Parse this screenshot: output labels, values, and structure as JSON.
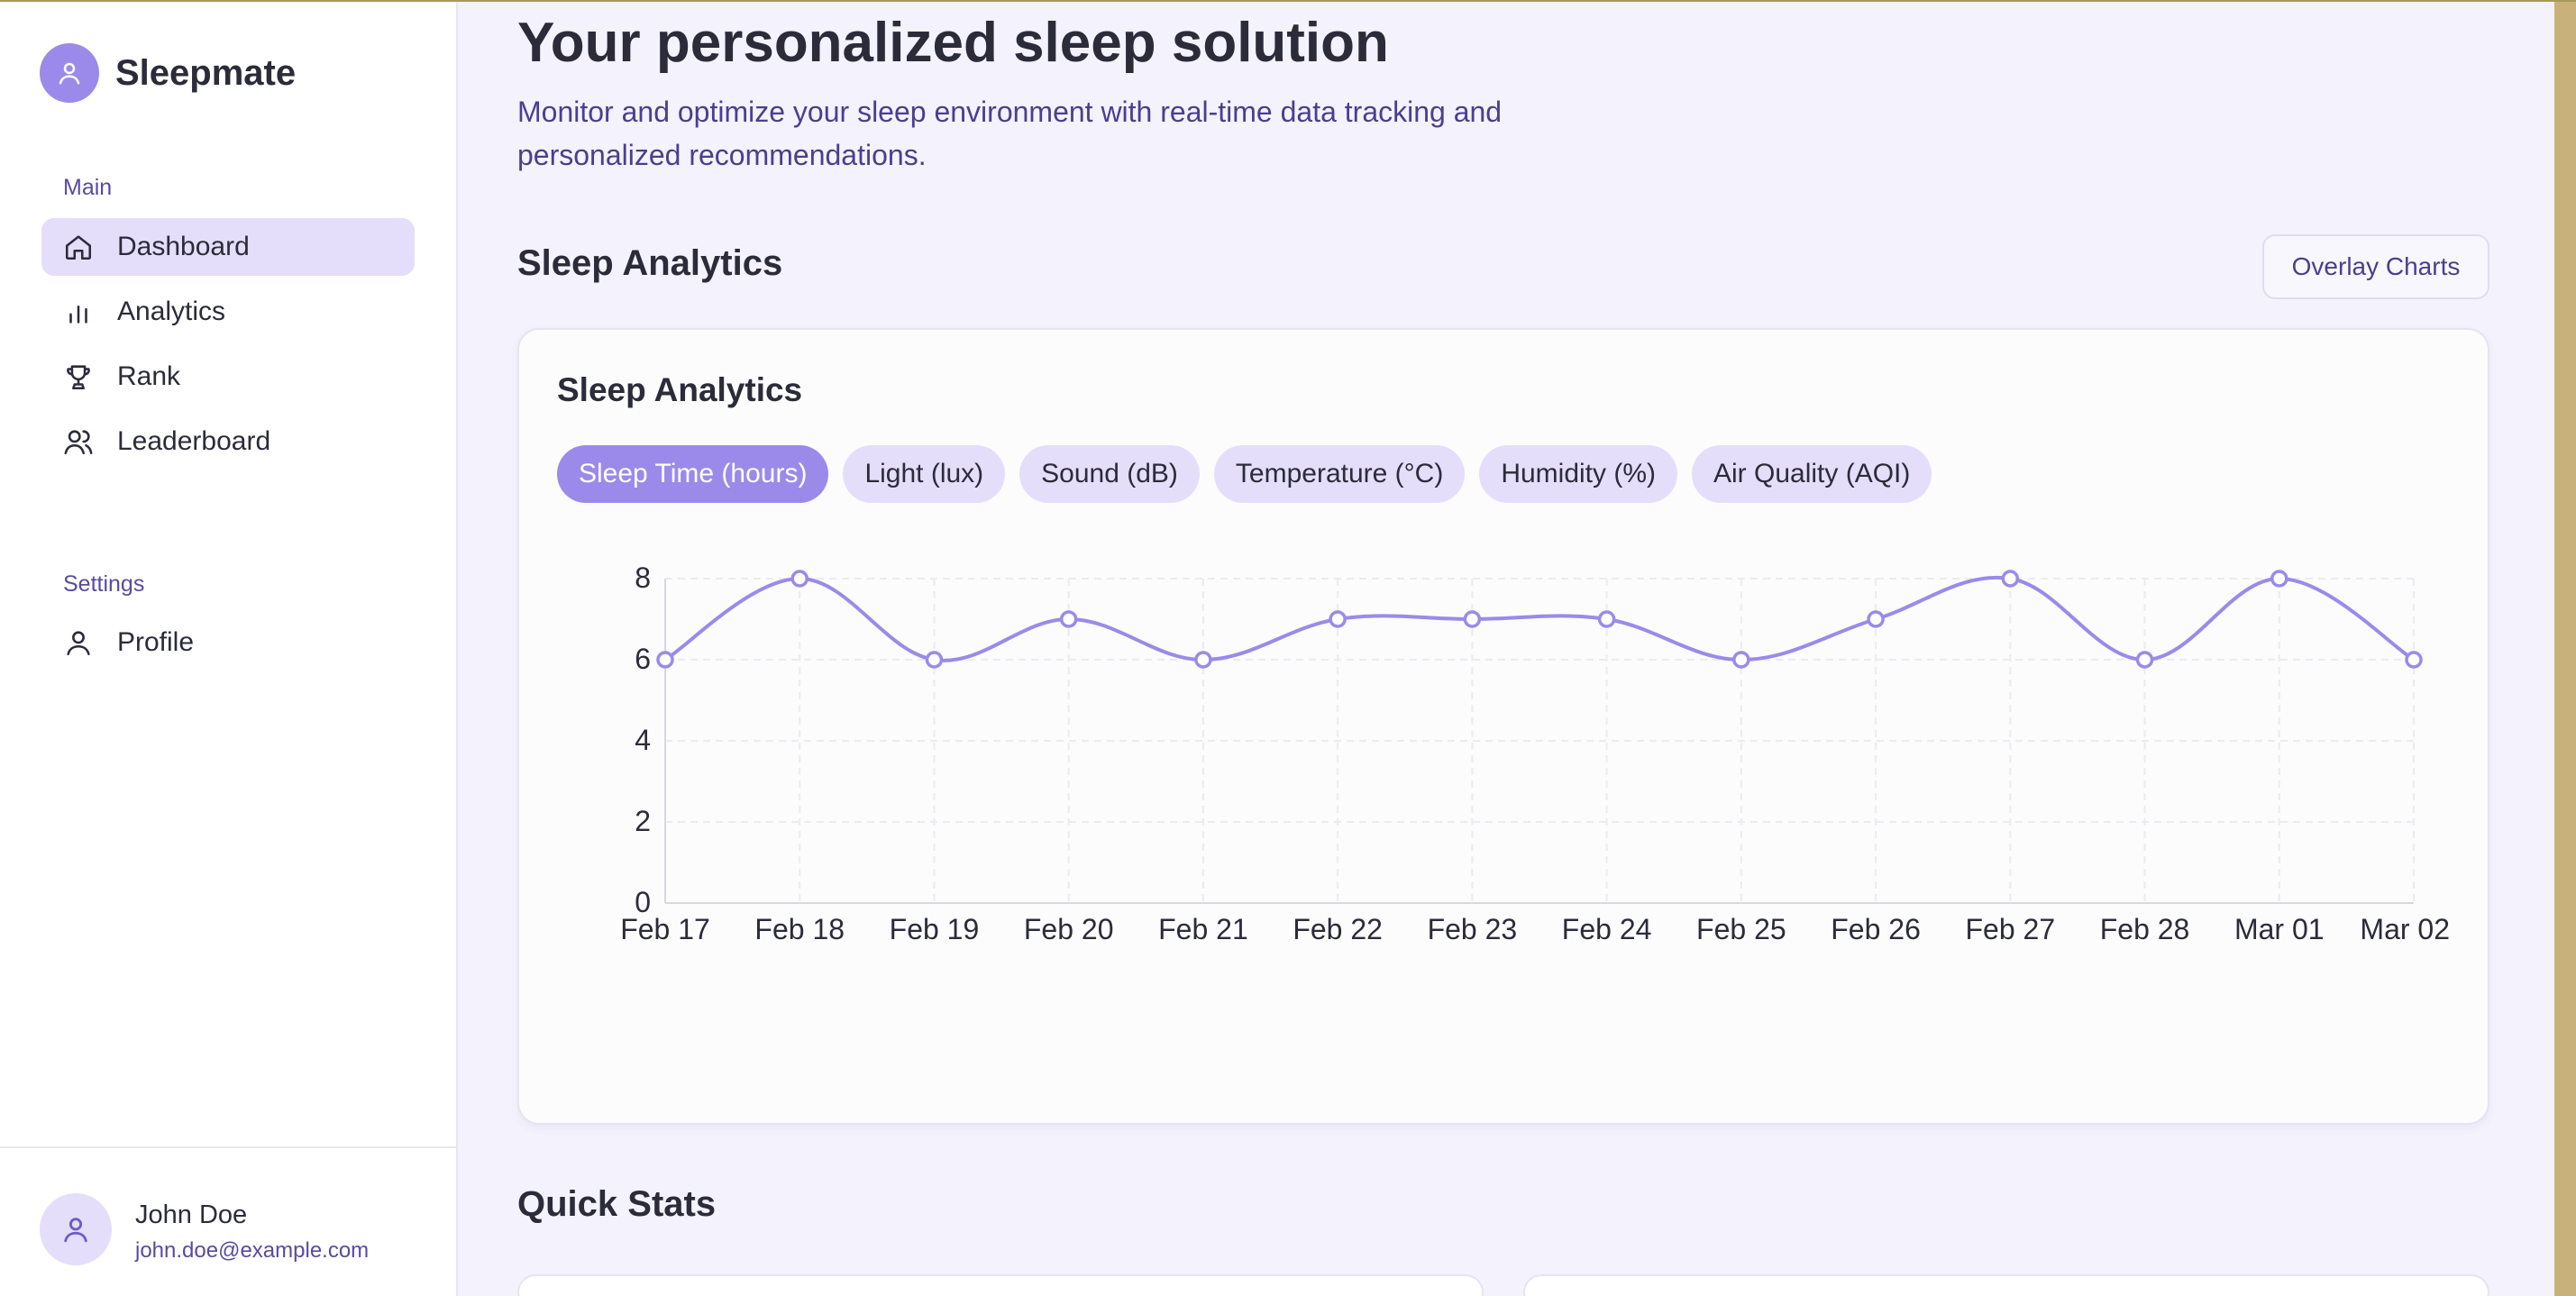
{
  "app": {
    "name": "Sleepmate"
  },
  "sidebar": {
    "main_label": "Main",
    "settings_label": "Settings",
    "items": [
      {
        "label": "Dashboard",
        "icon": "home-icon",
        "active": true
      },
      {
        "label": "Analytics",
        "icon": "bar-chart-icon",
        "active": false
      },
      {
        "label": "Rank",
        "icon": "trophy-icon",
        "active": false
      },
      {
        "label": "Leaderboard",
        "icon": "users-icon",
        "active": false
      }
    ],
    "settings_items": [
      {
        "label": "Profile",
        "icon": "user-icon"
      }
    ]
  },
  "user": {
    "name": "John Doe",
    "email": "john.doe@example.com"
  },
  "header": {
    "title": "Your personalized sleep solution",
    "subtitle": "Monitor and optimize your sleep environment with real-time data tracking and personalized recommendations."
  },
  "analytics": {
    "section_title": "Sleep Analytics",
    "overlay_button": "Overlay Charts",
    "card_title": "Sleep Analytics",
    "tabs": [
      "Sleep Time (hours)",
      "Light (lux)",
      "Sound (dB)",
      "Temperature (°C)",
      "Humidity (%)",
      "Air Quality (AQI)"
    ],
    "active_tab": 0
  },
  "quick_stats": {
    "title": "Quick Stats"
  },
  "colors": {
    "accent": "#9b8aea",
    "accent_light": "#e4defb",
    "text_muted": "#4a3f8f"
  },
  "chart_data": {
    "type": "line",
    "x": [
      "Feb 17",
      "Feb 18",
      "Feb 19",
      "Feb 20",
      "Feb 21",
      "Feb 22",
      "Feb 23",
      "Feb 24",
      "Feb 25",
      "Feb 26",
      "Feb 27",
      "Feb 28",
      "Mar 01",
      "Mar 02"
    ],
    "series": [
      {
        "values": [
          6,
          8,
          6,
          7,
          6,
          7,
          7,
          7,
          6,
          7,
          8,
          6,
          8,
          6
        ],
        "color": "#9b8aea"
      }
    ],
    "yticks": [
      "0",
      "2",
      "4",
      "6",
      "8"
    ],
    "ylim": [
      0,
      8
    ],
    "title": "",
    "xlabel": "",
    "ylabel": "",
    "grid": true
  }
}
